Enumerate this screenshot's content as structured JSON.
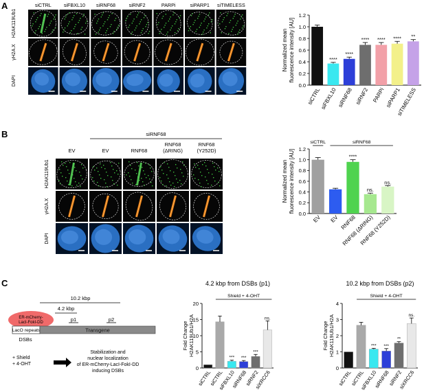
{
  "panels": {
    "A": {
      "letter": "A",
      "columns": [
        "siCTRL",
        "siFBXL10",
        "siRNF68",
        "siRNF2",
        "PARPi",
        "siPARP1",
        "siTIMELESS"
      ],
      "rows": [
        "H2AK119Ub1",
        "γH2A.X",
        "DAPI"
      ]
    },
    "B": {
      "letter": "B",
      "group_label": "siRNF68",
      "columns": [
        "EV",
        "EV",
        "RNF68",
        "RNF68\n(ΔRING)",
        "RNF68\n(Y252D)"
      ],
      "rows": [
        "H2AK119Ub1",
        "γH2A.X",
        "DAPI"
      ]
    },
    "C": {
      "letter": "C",
      "construct": "ER-mCherry-\nLacI-FokI-DD",
      "laco": "LacO repeats",
      "transgene": "Transgene",
      "dsbs": "DSBs",
      "d1": "10.2 kbp",
      "d2": "4.2 kbp",
      "p1": "p1",
      "p2": "p2",
      "treatment": "+ Shield\n+ 4-OHT",
      "outcome": "Stabilization and\nnuclear localization\nof ER-mCherry-LacI-FokI-DD\ninducing DSBs"
    }
  },
  "chart_data": [
    {
      "type": "bar",
      "panel": "A",
      "ylabel": "Normalized mean\nfluorescence intensity [AU]",
      "ylim": [
        0,
        1.2
      ],
      "yticks": [
        0.0,
        0.2,
        0.4,
        0.6,
        0.8,
        1.0,
        1.2
      ],
      "categories": [
        "siCTRL",
        "siFBXL10",
        "siRNF68",
        "siRNF2",
        "PARPi",
        "siPARP1",
        "siTIMELESS"
      ],
      "values": [
        1.0,
        0.37,
        0.45,
        0.69,
        0.69,
        0.71,
        0.75
      ],
      "errors": [
        0.03,
        0.02,
        0.03,
        0.04,
        0.04,
        0.04,
        0.03
      ],
      "significance": [
        "",
        "****",
        "****",
        "****",
        "****",
        "****",
        "**"
      ],
      "colors": [
        "#111111",
        "#39e8f0",
        "#2d3fd8",
        "#6e6e6e",
        "#f2a0a8",
        "#f3f08a",
        "#c5a2e8"
      ],
      "top_bracket_label": "",
      "grid": false
    },
    {
      "type": "bar",
      "panel": "B",
      "ylabel": "Normalized mean\nfluorescence intensity [AU]",
      "ylim": [
        0,
        1.2
      ],
      "yticks": [
        0.0,
        0.2,
        0.4,
        0.6,
        0.8,
        1.0,
        1.2
      ],
      "categories": [
        "EV",
        "EV",
        "RNF68",
        "RNF68 (ΔRING)",
        "RNF68 (Y252D)"
      ],
      "values": [
        1.0,
        0.45,
        0.96,
        0.36,
        0.5
      ],
      "errors": [
        0.04,
        0.02,
        0.04,
        0.02,
        0.02
      ],
      "significance": [
        "",
        "",
        "****",
        "ns.",
        "ns."
      ],
      "colors": [
        "#a0a0a0",
        "#2d5cf0",
        "#4fd34f",
        "#a6e88f",
        "#d8f5c5"
      ],
      "bracket_left": "siCTRL",
      "bracket_right": "siRNF68",
      "grid": false
    },
    {
      "type": "bar",
      "panel": "C",
      "title": "4.2 kbp from DSBs (p1)",
      "ylabel": "Fold Change\nH2AK119Ub1/H2A",
      "ylim": [
        0,
        20
      ],
      "yticks": [
        0,
        5,
        10,
        15,
        20
      ],
      "categories": [
        "siCTRL",
        "siCTRL",
        "siFBXL10",
        "siRNF68",
        "siRNF2",
        "siXRCC6"
      ],
      "values": [
        1.0,
        14.3,
        2.1,
        2.0,
        3.6,
        11.8
      ],
      "errors": [
        0.0,
        1.8,
        0.3,
        0.3,
        0.6,
        2.8
      ],
      "significance": [
        "",
        "",
        "***",
        "***",
        "***",
        "ns."
      ],
      "colors": [
        "#111111",
        "#a9a9a9",
        "#39e8f0",
        "#2d3fd8",
        "#6e6e6e",
        "#e8e8e8"
      ],
      "bracket_label": "Shield + 4-OHT",
      "grid": false
    },
    {
      "type": "bar",
      "panel": "C",
      "title": "10.2 kbp from DSBs (p2)",
      "ylabel": "Fold Change\nH2AK119Ub1/H2A",
      "ylim": [
        0,
        4
      ],
      "yticks": [
        0,
        1,
        2,
        3,
        4
      ],
      "categories": [
        "siCTRL",
        "siCTRL",
        "siFBXL10",
        "siRNF68",
        "siRNF2",
        "siXRCC6"
      ],
      "values": [
        1.0,
        2.65,
        1.17,
        1.05,
        1.55,
        2.75
      ],
      "errors": [
        0.0,
        0.18,
        0.05,
        0.15,
        0.08,
        0.35
      ],
      "significance": [
        "",
        "",
        "***",
        "***",
        "**",
        "ns."
      ],
      "colors": [
        "#111111",
        "#a9a9a9",
        "#39e8f0",
        "#2d3fd8",
        "#6e6e6e",
        "#e8e8e8"
      ],
      "bracket_label": "Shield + 4-OHT",
      "grid": false
    }
  ]
}
